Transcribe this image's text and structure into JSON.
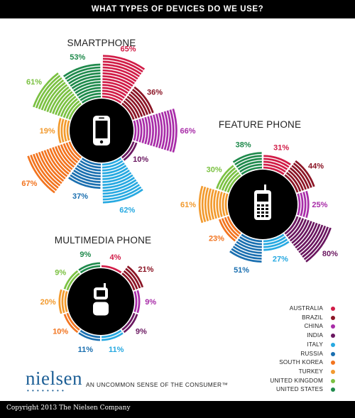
{
  "header": {
    "title": "WHAT TYPES OF DEVICES DO WE USE?"
  },
  "footer": {
    "copyright": "Copyright 2013 The Nielsen Company"
  },
  "brand": {
    "name": "nielsen",
    "tagline": "AN UNCOMMON SENSE OF THE CONSUMER™"
  },
  "icons": [
    "smartphone-icon",
    "feature-phone-icon",
    "flip-phone-icon"
  ],
  "colors": {
    "AUSTRALIA": "#d11c47",
    "BRAZIL": "#8b1525",
    "CHINA": "#a82ca8",
    "INDIA": "#6a1760",
    "ITALY": "#27a9e1",
    "RUSSIA": "#1a6fb0",
    "SOUTH KOREA": "#f2741f",
    "TURKEY": "#f29a2e",
    "UNITED KINGDOM": "#7bc142",
    "UNITED STATES": "#1f8a4c"
  },
  "legend": [
    "AUSTRALIA",
    "BRAZIL",
    "CHINA",
    "INDIA",
    "ITALY",
    "RUSSIA",
    "SOUTH KOREA",
    "TURKEY",
    "UNITED KINGDOM",
    "UNITED STATES"
  ],
  "chart_data": [
    {
      "type": "radial-bar",
      "title": "SMARTPHONE",
      "unit": "%",
      "categories": [
        "AUSTRALIA",
        "BRAZIL",
        "CHINA",
        "INDIA",
        "ITALY",
        "RUSSIA",
        "SOUTH KOREA",
        "TURKEY",
        "UNITED KINGDOM",
        "UNITED STATES"
      ],
      "values": [
        65,
        36,
        66,
        10,
        62,
        37,
        67,
        19,
        61,
        53
      ],
      "labels": [
        "65%",
        "36%",
        "66%",
        "10%",
        "62%",
        "37%",
        "67%",
        "19%",
        "61%",
        "53%"
      ]
    },
    {
      "type": "radial-bar",
      "title": "FEATURE PHONE",
      "unit": "%",
      "categories": [
        "AUSTRALIA",
        "BRAZIL",
        "CHINA",
        "INDIA",
        "ITALY",
        "RUSSIA",
        "SOUTH KOREA",
        "TURKEY",
        "UNITED KINGDOM",
        "UNITED STATES"
      ],
      "values": [
        31,
        44,
        25,
        80,
        27,
        51,
        23,
        61,
        30,
        38
      ],
      "labels": [
        "31%",
        "44%",
        "25%",
        "80%",
        "27%",
        "51%",
        "23%",
        "61%",
        "30%",
        "38%"
      ]
    },
    {
      "type": "radial-bar",
      "title": "MULTIMEDIA PHONE",
      "unit": "%",
      "categories": [
        "AUSTRALIA",
        "BRAZIL",
        "CHINA",
        "INDIA",
        "ITALY",
        "RUSSIA",
        "SOUTH KOREA",
        "TURKEY",
        "UNITED KINGDOM",
        "UNITED STATES"
      ],
      "values": [
        4,
        21,
        9,
        9,
        11,
        11,
        10,
        20,
        9,
        9
      ],
      "labels": [
        "4%",
        "21%",
        "9%",
        "9%",
        "11%",
        "11%",
        "10%",
        "20%",
        "9%",
        "9%"
      ]
    }
  ]
}
